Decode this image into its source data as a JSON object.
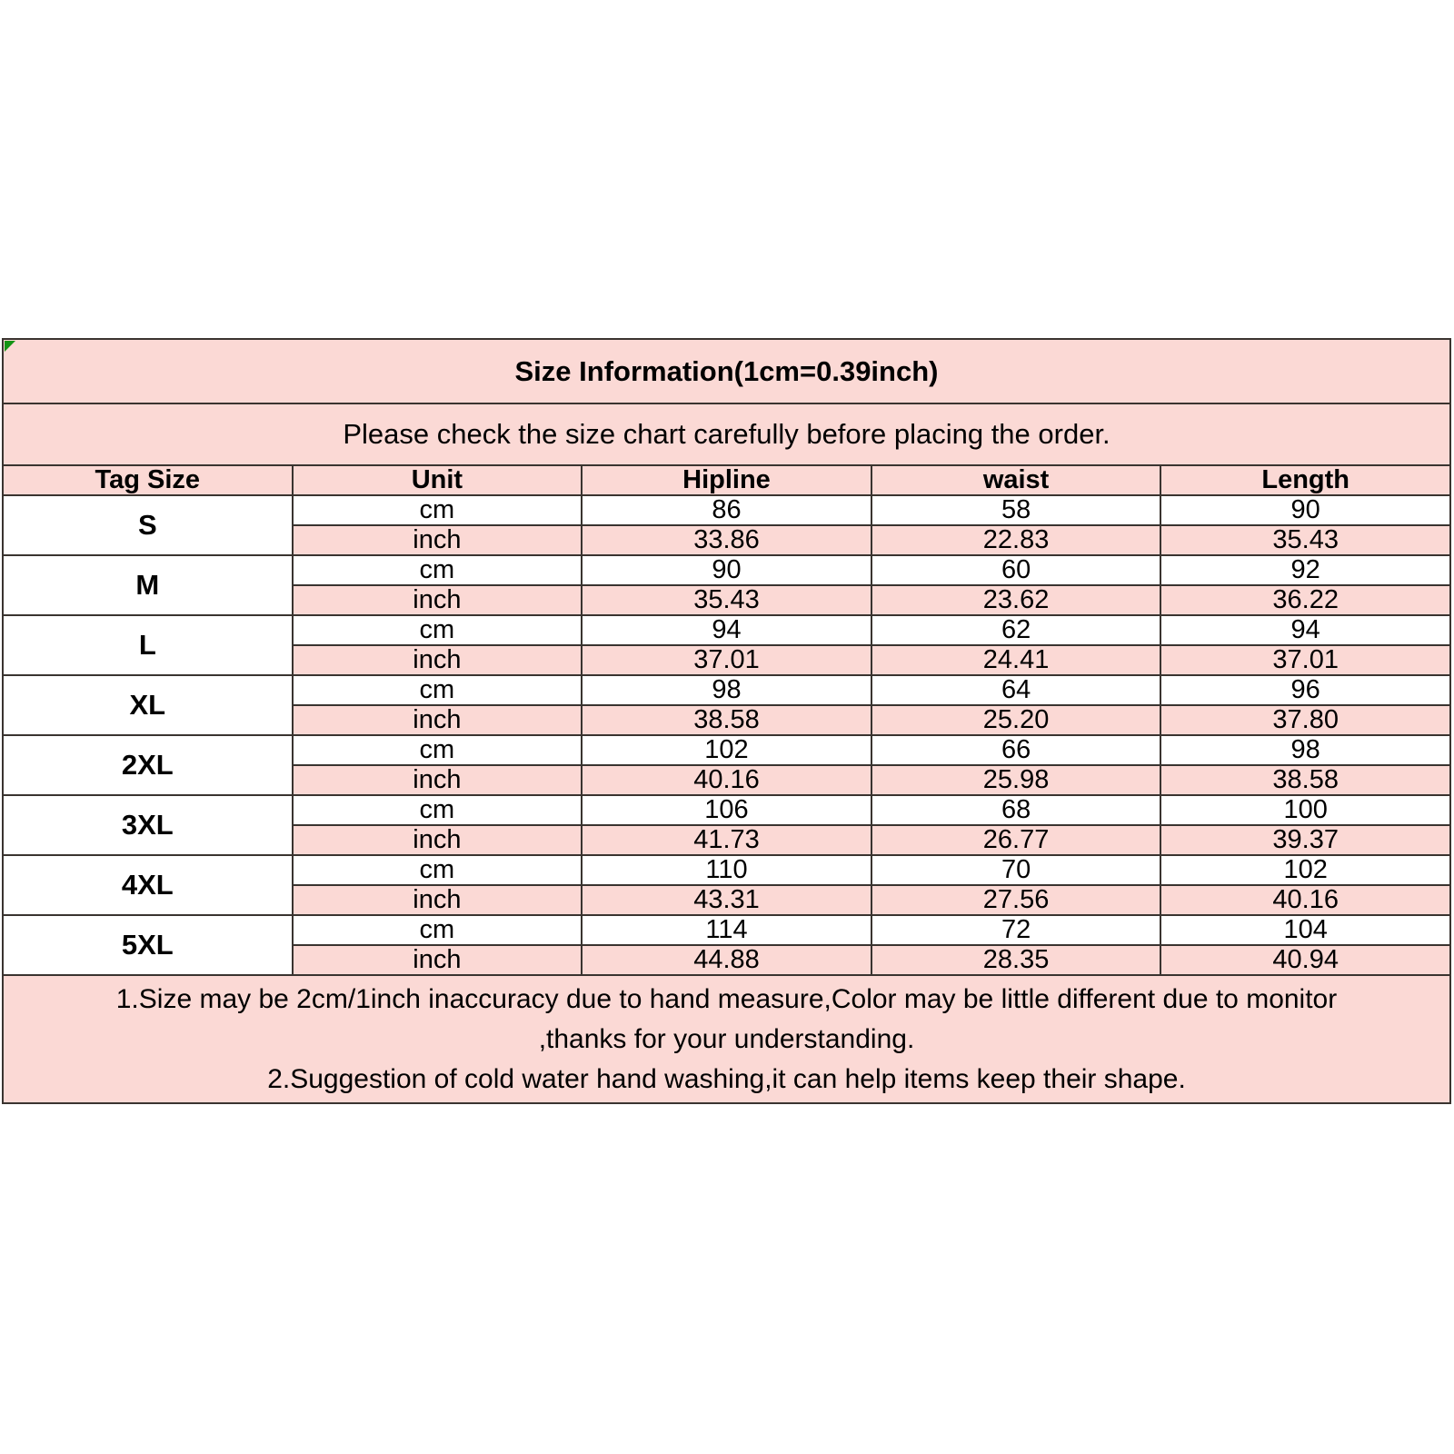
{
  "table": {
    "title": "Size Information(1cm=0.39inch)",
    "subtitle": "Please check the size chart carefully before placing the order.",
    "columns": [
      "Tag Size",
      "Unit",
      "Hipline",
      "waist",
      "Length"
    ],
    "unit_labels": {
      "cm": "cm",
      "inch": "inch"
    },
    "rows": [
      {
        "size": "S",
        "cm": [
          "86",
          "58",
          "90"
        ],
        "inch": [
          "33.86",
          "22.83",
          "35.43"
        ]
      },
      {
        "size": "M",
        "cm": [
          "90",
          "60",
          "92"
        ],
        "inch": [
          "35.43",
          "23.62",
          "36.22"
        ]
      },
      {
        "size": "L",
        "cm": [
          "94",
          "62",
          "94"
        ],
        "inch": [
          "37.01",
          "24.41",
          "37.01"
        ]
      },
      {
        "size": "XL",
        "cm": [
          "98",
          "64",
          "96"
        ],
        "inch": [
          "38.58",
          "25.20",
          "37.80"
        ]
      },
      {
        "size": "2XL",
        "cm": [
          "102",
          "66",
          "98"
        ],
        "inch": [
          "40.16",
          "25.98",
          "38.58"
        ]
      },
      {
        "size": "3XL",
        "cm": [
          "106",
          "68",
          "100"
        ],
        "inch": [
          "41.73",
          "26.77",
          "39.37"
        ]
      },
      {
        "size": "4XL",
        "cm": [
          "110",
          "70",
          "102"
        ],
        "inch": [
          "43.31",
          "27.56",
          "40.16"
        ]
      },
      {
        "size": "5XL",
        "cm": [
          "114",
          "72",
          "104"
        ],
        "inch": [
          "44.88",
          "28.35",
          "40.94"
        ]
      }
    ],
    "notes": [
      "1.Size may be 2cm/1inch inaccuracy due to hand measure,Color may be little different due to monitor",
      ",thanks for your understanding.",
      "2.Suggestion of cold water hand washing,it can help items keep their shape."
    ],
    "colors": {
      "row_pink": "#fbd9d5",
      "row_white": "#ffffff",
      "border": "#3a3430",
      "corner_green": "#149314",
      "text": "#000000"
    }
  },
  "chart_data": {
    "type": "table",
    "title": "Size Information(1cm=0.39inch)",
    "subtitle": "Please check the size chart carefully before placing the order.",
    "columns": [
      "Tag Size",
      "Unit",
      "Hipline",
      "waist",
      "Length"
    ],
    "rows": [
      [
        "S",
        "cm",
        86,
        58,
        90
      ],
      [
        "S",
        "inch",
        33.86,
        22.83,
        35.43
      ],
      [
        "M",
        "cm",
        90,
        60,
        92
      ],
      [
        "M",
        "inch",
        35.43,
        23.62,
        36.22
      ],
      [
        "L",
        "cm",
        94,
        62,
        94
      ],
      [
        "L",
        "inch",
        37.01,
        24.41,
        37.01
      ],
      [
        "XL",
        "cm",
        98,
        64,
        96
      ],
      [
        "XL",
        "inch",
        38.58,
        25.2,
        37.8
      ],
      [
        "2XL",
        "cm",
        102,
        66,
        98
      ],
      [
        "2XL",
        "inch",
        40.16,
        25.98,
        38.58
      ],
      [
        "3XL",
        "cm",
        106,
        68,
        100
      ],
      [
        "3XL",
        "inch",
        41.73,
        26.77,
        39.37
      ],
      [
        "4XL",
        "cm",
        110,
        70,
        102
      ],
      [
        "4XL",
        "inch",
        43.31,
        27.56,
        40.16
      ],
      [
        "5XL",
        "cm",
        114,
        72,
        104
      ],
      [
        "5XL",
        "inch",
        44.88,
        28.35,
        40.94
      ]
    ],
    "annotations": [
      "1.Size may be 2cm/1inch inaccuracy due to hand measure,Color may be little different due to monitor",
      ",thanks for your understanding.",
      "2.Suggestion of cold water hand washing,it can help items keep their shape."
    ],
    "layout_hints": {
      "striping": "cm rows white, inch rows pink",
      "grid": true
    }
  }
}
